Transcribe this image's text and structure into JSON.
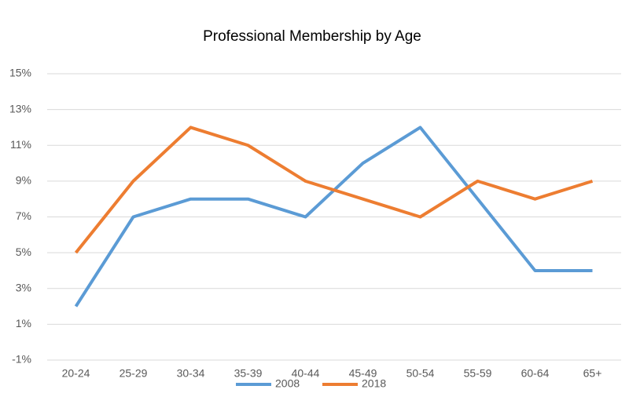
{
  "chart_data": {
    "type": "line",
    "title": "Professional Membership by Age",
    "categories": [
      "20-24",
      "25-29",
      "30-34",
      "35-39",
      "40-44",
      "45-49",
      "50-54",
      "55-59",
      "60-64",
      "65+"
    ],
    "series": [
      {
        "name": "2008",
        "color": "#5b9bd5",
        "values": [
          2,
          7,
          8,
          8,
          7,
          10,
          12,
          8,
          4,
          4
        ]
      },
      {
        "name": "2018",
        "color": "#ed7d31",
        "values": [
          5,
          9,
          12,
          11,
          9,
          8,
          7,
          9,
          8,
          9
        ]
      }
    ],
    "ylim": [
      -1,
      15
    ],
    "yticks": [
      {
        "value": -1,
        "label": "-1%"
      },
      {
        "value": 1,
        "label": "1%"
      },
      {
        "value": 3,
        "label": "3%"
      },
      {
        "value": 5,
        "label": "5%"
      },
      {
        "value": 7,
        "label": "7%"
      },
      {
        "value": 9,
        "label": "9%"
      },
      {
        "value": 11,
        "label": "11%"
      },
      {
        "value": 13,
        "label": "13%"
      },
      {
        "value": 15,
        "label": "15%"
      }
    ],
    "grid": true,
    "legend": "bottom"
  }
}
